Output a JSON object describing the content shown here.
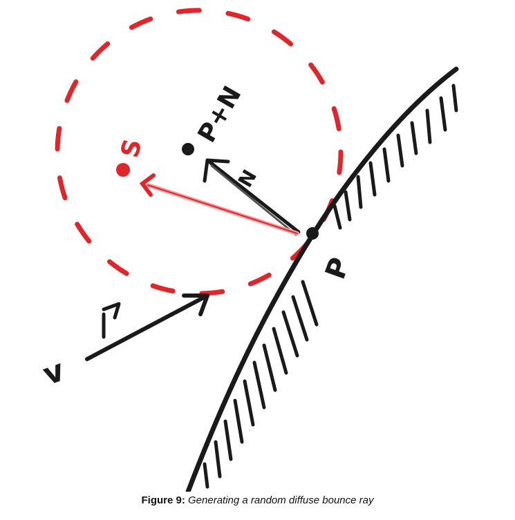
{
  "diagram": {
    "labels": {
      "ray_in": "v",
      "point_p": "P",
      "normal": "N",
      "p_plus_n": "P+N",
      "point_s": "S"
    },
    "colors": {
      "ink": "#1a1a1a",
      "sphere": "#e0262b"
    }
  },
  "caption": {
    "label": "Figure 9:",
    "text": "Generating a random diffuse bounce ray"
  }
}
